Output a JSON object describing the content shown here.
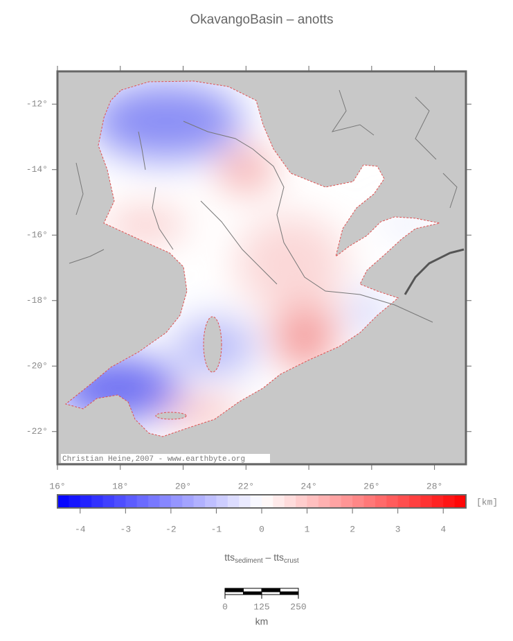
{
  "title": "OkavangoBasin – anotts",
  "map": {
    "xlim": [
      16,
      29
    ],
    "ylim": [
      -23,
      -11
    ],
    "xticks": [
      {
        "value": 16,
        "label": "16°"
      },
      {
        "value": 18,
        "label": "18°"
      },
      {
        "value": 20,
        "label": "20°"
      },
      {
        "value": 22,
        "label": "22°"
      },
      {
        "value": 24,
        "label": "24°"
      },
      {
        "value": 26,
        "label": "26°"
      },
      {
        "value": 28,
        "label": "28°"
      }
    ],
    "yticks": [
      {
        "value": -12,
        "label": "-12°"
      },
      {
        "value": -14,
        "label": "-14°"
      },
      {
        "value": -16,
        "label": "-16°"
      },
      {
        "value": -18,
        "label": "-18°"
      },
      {
        "value": -20,
        "label": "-20°"
      },
      {
        "value": -22,
        "label": "-22°"
      }
    ],
    "credit": "Christian Heine,2007 - www.earthbyte.org"
  },
  "colorbar": {
    "clim": [
      -4.5,
      4.5
    ],
    "ticks": [
      -4,
      -3,
      -2,
      -1,
      0,
      1,
      2,
      3,
      4
    ],
    "unit": "[km]",
    "colors": [
      "#0000ff",
      "#ffffff",
      "#ff0000"
    ],
    "label": {
      "main1": "tts",
      "sub1": "sediment",
      "sep": " – ",
      "main2": "tts",
      "sub2": "crust"
    }
  },
  "scale_bar": {
    "ticks": [
      0,
      125,
      250
    ],
    "unit": "km"
  }
}
